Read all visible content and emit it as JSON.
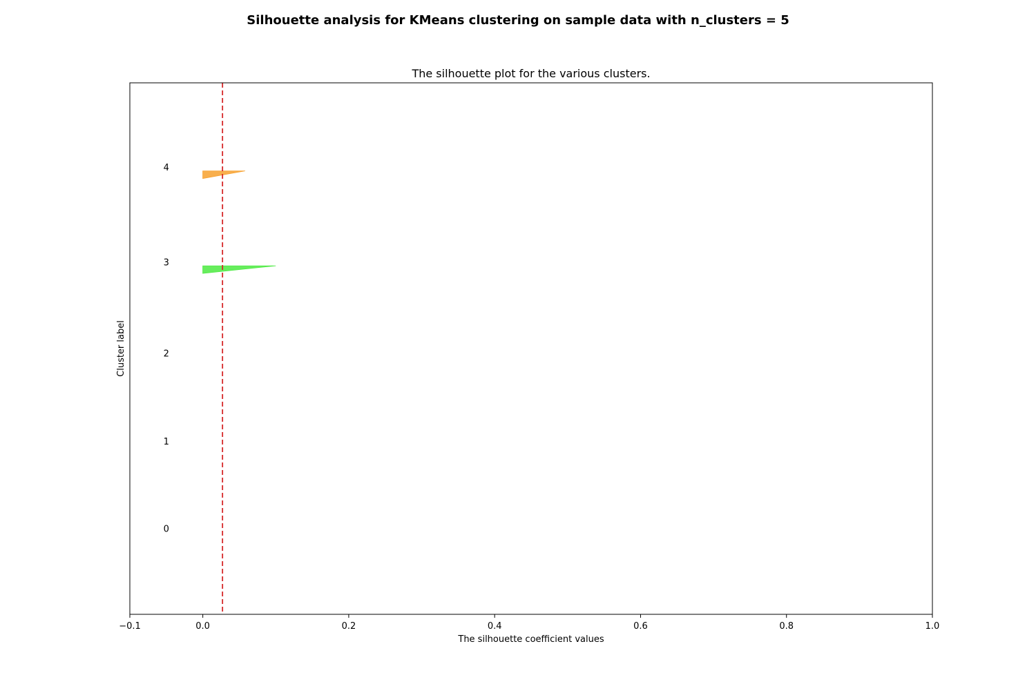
{
  "figure_title": "Silhouette analysis for KMeans clustering on sample data with n_clusters = 5",
  "chart_data": {
    "type": "area",
    "title": "The silhouette plot for the various clusters.",
    "xlabel": "The silhouette coefficient values",
    "ylabel": "Cluster label",
    "xlim": [
      -0.1,
      1.0
    ],
    "ylim": [
      0,
      70
    ],
    "xticks": [
      {
        "value": -0.1,
        "label": "−0.1"
      },
      {
        "value": 0.0,
        "label": "0.0"
      },
      {
        "value": 0.2,
        "label": "0.2"
      },
      {
        "value": 0.4,
        "label": "0.4"
      },
      {
        "value": 0.6,
        "label": "0.6"
      },
      {
        "value": 0.8,
        "label": "0.8"
      },
      {
        "value": 1.0,
        "label": "1.0"
      }
    ],
    "grid": false,
    "legend": "none",
    "average_silhouette_score": 0.027,
    "average_line_color": "#d62728",
    "clusters": [
      {
        "label": "0",
        "label_y": 11.3,
        "y_lower": 11.3,
        "y_upper": 11.3,
        "max_value": 0.0,
        "min_value": 0.0,
        "color": "#7f00ff"
      },
      {
        "label": "1",
        "label_y": 22.8,
        "y_lower": 22.8,
        "y_upper": 22.8,
        "max_value": 0.0,
        "min_value": 0.0,
        "color": "#1ea7e1"
      },
      {
        "label": "2",
        "label_y": 34.4,
        "y_lower": 34.4,
        "y_upper": 34.4,
        "max_value": 0.0,
        "min_value": 0.0,
        "color": "#00d48a"
      },
      {
        "label": "3",
        "label_y": 46.4,
        "y_lower": 44.9,
        "y_upper": 45.9,
        "max_value": 0.1,
        "min_value": 0.0,
        "color": "#4cea41"
      },
      {
        "label": "4",
        "label_y": 58.9,
        "y_lower": 57.4,
        "y_upper": 58.4,
        "max_value": 0.058,
        "min_value": 0.0,
        "color": "#f7a12e"
      }
    ]
  }
}
